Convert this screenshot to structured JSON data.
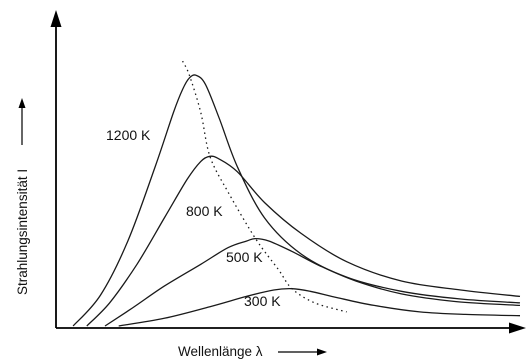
{
  "chart_data": {
    "type": "line",
    "title": "",
    "xlabel": "Wellenlänge λ",
    "ylabel": "Strahlungsintensität I",
    "ticks": false,
    "grid": false,
    "legend": "none",
    "series": [
      {
        "name": "1200 K",
        "points": [
          [
            0.02,
            0.0
          ],
          [
            0.08,
            0.12
          ],
          [
            0.14,
            0.33
          ],
          [
            0.2,
            0.62
          ],
          [
            0.24,
            0.83
          ],
          [
            0.26,
            0.92
          ],
          [
            0.275,
            0.965
          ],
          [
            0.29,
            0.975
          ],
          [
            0.31,
            0.94
          ],
          [
            0.34,
            0.81
          ],
          [
            0.38,
            0.62
          ],
          [
            0.44,
            0.42
          ],
          [
            0.52,
            0.28
          ],
          [
            0.62,
            0.19
          ],
          [
            0.74,
            0.135
          ],
          [
            0.87,
            0.105
          ],
          [
            1.0,
            0.09
          ]
        ]
      },
      {
        "name": "800 K",
        "points": [
          [
            0.05,
            0.0
          ],
          [
            0.1,
            0.09
          ],
          [
            0.16,
            0.24
          ],
          [
            0.22,
            0.42
          ],
          [
            0.27,
            0.57
          ],
          [
            0.3,
            0.64
          ],
          [
            0.32,
            0.66
          ],
          [
            0.34,
            0.65
          ],
          [
            0.38,
            0.6
          ],
          [
            0.44,
            0.48
          ],
          [
            0.52,
            0.36
          ],
          [
            0.62,
            0.25
          ],
          [
            0.74,
            0.175
          ],
          [
            0.87,
            0.14
          ],
          [
            1.0,
            0.115
          ]
        ]
      },
      {
        "name": "500 K",
        "points": [
          [
            0.09,
            0.0
          ],
          [
            0.15,
            0.07
          ],
          [
            0.22,
            0.155
          ],
          [
            0.3,
            0.24
          ],
          [
            0.36,
            0.305
          ],
          [
            0.4,
            0.33
          ],
          [
            0.42,
            0.34
          ],
          [
            0.45,
            0.33
          ],
          [
            0.5,
            0.29
          ],
          [
            0.56,
            0.235
          ],
          [
            0.64,
            0.175
          ],
          [
            0.74,
            0.125
          ],
          [
            0.86,
            0.095
          ],
          [
            1.0,
            0.08
          ]
        ]
      },
      {
        "name": "300 K",
        "points": [
          [
            0.12,
            0.0
          ],
          [
            0.22,
            0.03
          ],
          [
            0.32,
            0.075
          ],
          [
            0.4,
            0.115
          ],
          [
            0.46,
            0.14
          ],
          [
            0.5,
            0.145
          ],
          [
            0.54,
            0.135
          ],
          [
            0.6,
            0.11
          ],
          [
            0.68,
            0.08
          ],
          [
            0.78,
            0.055
          ],
          [
            0.88,
            0.045
          ],
          [
            1.0,
            0.04
          ]
        ]
      }
    ],
    "peak_locus": {
      "style": "dotted",
      "points": [
        [
          0.26,
          1.03
        ],
        [
          0.275,
          0.975
        ],
        [
          0.3,
          0.83
        ],
        [
          0.32,
          0.66
        ],
        [
          0.36,
          0.52
        ],
        [
          0.42,
          0.34
        ],
        [
          0.47,
          0.22
        ],
        [
          0.5,
          0.145
        ],
        [
          0.55,
          0.09
        ],
        [
          0.62,
          0.055
        ]
      ]
    },
    "xlim": [
      0,
      1
    ],
    "ylim": [
      0,
      1.05
    ]
  }
}
